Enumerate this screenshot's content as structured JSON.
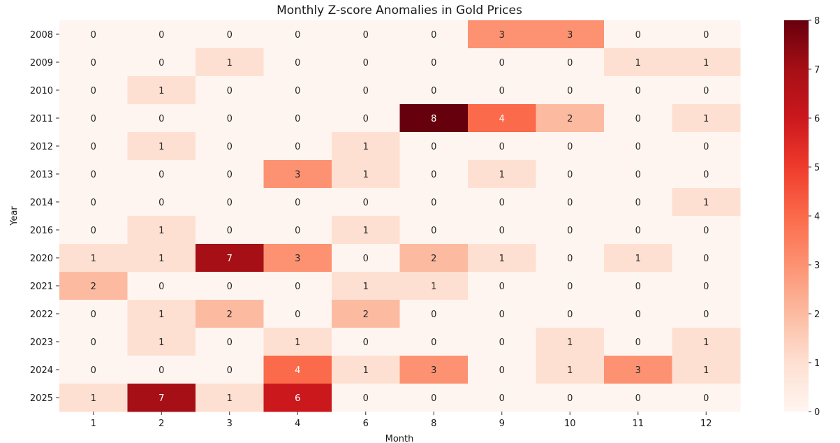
{
  "chart_data": {
    "type": "heatmap",
    "title": "Monthly Z-score Anomalies in Gold Prices",
    "xlabel": "Month",
    "ylabel": "Year",
    "x_categories": [
      "1",
      "2",
      "3",
      "4",
      "6",
      "8",
      "9",
      "10",
      "11",
      "12"
    ],
    "y_categories": [
      "2008",
      "2009",
      "2010",
      "2011",
      "2012",
      "2013",
      "2014",
      "2016",
      "2020",
      "2021",
      "2022",
      "2023",
      "2024",
      "2025"
    ],
    "values": [
      [
        0,
        0,
        0,
        0,
        0,
        0,
        3,
        3,
        0,
        0
      ],
      [
        0,
        0,
        1,
        0,
        0,
        0,
        0,
        0,
        1,
        1
      ],
      [
        0,
        1,
        0,
        0,
        0,
        0,
        0,
        0,
        0,
        0
      ],
      [
        0,
        0,
        0,
        0,
        0,
        8,
        4,
        2,
        0,
        1
      ],
      [
        0,
        1,
        0,
        0,
        1,
        0,
        0,
        0,
        0,
        0
      ],
      [
        0,
        0,
        0,
        3,
        1,
        0,
        1,
        0,
        0,
        0
      ],
      [
        0,
        0,
        0,
        0,
        0,
        0,
        0,
        0,
        0,
        1
      ],
      [
        0,
        1,
        0,
        0,
        1,
        0,
        0,
        0,
        0,
        0
      ],
      [
        1,
        1,
        7,
        3,
        0,
        2,
        1,
        0,
        1,
        0
      ],
      [
        2,
        0,
        0,
        0,
        1,
        1,
        0,
        0,
        0,
        0
      ],
      [
        0,
        1,
        2,
        0,
        2,
        0,
        0,
        0,
        0,
        0
      ],
      [
        0,
        1,
        0,
        1,
        0,
        0,
        0,
        1,
        0,
        1
      ],
      [
        0,
        0,
        0,
        4,
        1,
        3,
        0,
        1,
        3,
        1
      ],
      [
        1,
        7,
        1,
        6,
        0,
        0,
        0,
        0,
        0,
        0
      ]
    ],
    "colorbar": {
      "min": 0,
      "max": 8,
      "ticks": [
        "0",
        "1",
        "2",
        "3",
        "4",
        "5",
        "6",
        "7",
        "8"
      ]
    },
    "colormap": "Reds",
    "colors": {
      "low": "#fff5f0",
      "high": "#67000d",
      "annot_dark": "#262626",
      "annot_light": "#ffffff"
    }
  }
}
